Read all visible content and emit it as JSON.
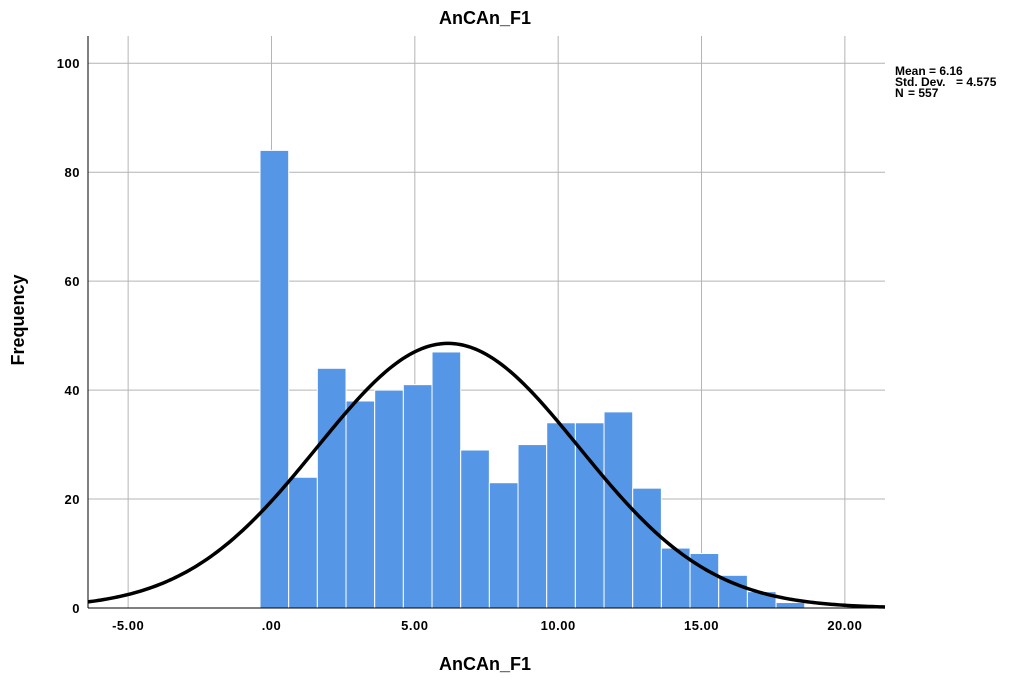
{
  "chart_data": {
    "type": "bar",
    "title": "AnCAn_F1",
    "xlabel": "AnCAn_F1",
    "ylabel": "Frequency",
    "xlim": [
      -6.4,
      21.4
    ],
    "ylim": [
      0,
      105
    ],
    "x_ticks": [
      -5,
      0,
      5,
      10,
      15,
      20
    ],
    "x_tick_labels": [
      "-5.00",
      ".00",
      "5.00",
      "10.00",
      "15.00",
      "20.00"
    ],
    "y_ticks": [
      0,
      20,
      40,
      60,
      80,
      100
    ],
    "y_tick_labels": [
      "0",
      "20",
      "40",
      "60",
      "80",
      "100"
    ],
    "grid": true,
    "bar_color": "#5596E6",
    "bin_width": 1,
    "bins": [
      {
        "x0": -0.4,
        "x1": 0.6,
        "value": 84
      },
      {
        "x0": 0.6,
        "x1": 1.6,
        "value": 24
      },
      {
        "x0": 1.6,
        "x1": 2.6,
        "value": 44
      },
      {
        "x0": 2.6,
        "x1": 3.6,
        "value": 38
      },
      {
        "x0": 3.6,
        "x1": 4.6,
        "value": 40
      },
      {
        "x0": 4.6,
        "x1": 5.6,
        "value": 41
      },
      {
        "x0": 5.6,
        "x1": 6.6,
        "value": 47
      },
      {
        "x0": 6.6,
        "x1": 7.6,
        "value": 29
      },
      {
        "x0": 7.6,
        "x1": 8.6,
        "value": 23
      },
      {
        "x0": 8.6,
        "x1": 9.6,
        "value": 30
      },
      {
        "x0": 9.6,
        "x1": 10.6,
        "value": 34
      },
      {
        "x0": 10.6,
        "x1": 11.6,
        "value": 34
      },
      {
        "x0": 11.6,
        "x1": 12.6,
        "value": 36
      },
      {
        "x0": 12.6,
        "x1": 13.6,
        "value": 22
      },
      {
        "x0": 13.6,
        "x1": 14.6,
        "value": 11
      },
      {
        "x0": 14.6,
        "x1": 15.6,
        "value": 10
      },
      {
        "x0": 15.6,
        "x1": 16.6,
        "value": 6
      },
      {
        "x0": 16.6,
        "x1": 17.6,
        "value": 3
      },
      {
        "x0": 17.6,
        "x1": 18.6,
        "value": 1
      }
    ],
    "normal_curve": {
      "mean": 6.16,
      "std": 4.575,
      "n": 557,
      "color": "#000000"
    },
    "stats": [
      {
        "label": "Mean",
        "value": "6.16"
      },
      {
        "label": "Std. Dev.",
        "value": "4.575"
      },
      {
        "label": "N",
        "value": "557"
      }
    ]
  }
}
